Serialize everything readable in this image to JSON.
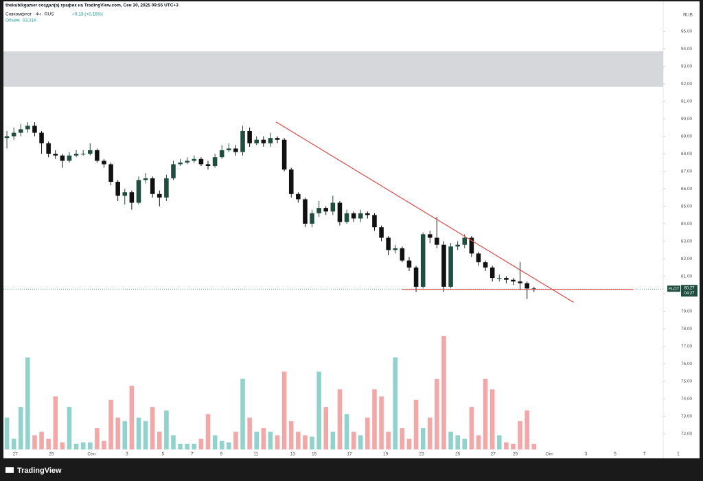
{
  "header": {
    "author_line": "thekubikgamer создал(а) график на TradingView.com, Сен 30, 2025 09:55 UTC+3",
    "symbol_line": "Совкомфлот · 4ч · RUS",
    "change": "+0,13 (+0,16%)",
    "volume_label": "Объём",
    "volume_value": "93,31K",
    "currency": "RUB",
    "brand": "TradingView"
  },
  "chart_data": {
    "type": "candlestick",
    "up_color": "#1f4d40",
    "down_color": "#111111",
    "volume_up_color": "#8fd3cc",
    "volume_down_color": "#f4a7a7",
    "grid": false,
    "xlim": [
      -0.5,
      97.5
    ],
    "xticks": [
      {
        "value": 1.2,
        "label": "27"
      },
      {
        "value": 6.4,
        "label": "29"
      },
      {
        "value": 12.2,
        "label": "Сен"
      },
      {
        "value": 17.3,
        "label": "3"
      },
      {
        "value": 22.5,
        "label": "5"
      },
      {
        "value": 26.7,
        "label": "7"
      },
      {
        "value": 30.9,
        "label": "9"
      },
      {
        "value": 35.9,
        "label": "11"
      },
      {
        "value": 41.2,
        "label": "13"
      },
      {
        "value": 44.3,
        "label": "15"
      },
      {
        "value": 49.4,
        "label": "17"
      },
      {
        "value": 54.6,
        "label": "19"
      },
      {
        "value": 59.8,
        "label": "23"
      },
      {
        "value": 65,
        "label": "25"
      },
      {
        "value": 70.1,
        "label": "27"
      },
      {
        "value": 73.3,
        "label": "29"
      },
      {
        "value": 78.2,
        "label": "Окт"
      },
      {
        "value": 83.5,
        "label": "3"
      },
      {
        "value": 87.7,
        "label": "5"
      },
      {
        "value": 91.9,
        "label": "7"
      },
      {
        "value": 96.8,
        "label": "1"
      }
    ],
    "ylim": [
      71,
      96.2
    ],
    "yticks": [
      {
        "value": 72,
        "label": "72,00"
      },
      {
        "value": 73,
        "label": "73,00"
      },
      {
        "value": 74,
        "label": "74,00"
      },
      {
        "value": 75,
        "label": "75,00"
      },
      {
        "value": 76,
        "label": "76,00"
      },
      {
        "value": 77,
        "label": "77,00"
      },
      {
        "value": 78,
        "label": "78,00"
      },
      {
        "value": 79,
        "label": "79,00"
      },
      {
        "value": 80,
        "label": "80,00"
      },
      {
        "value": 81,
        "label": "81,00"
      },
      {
        "value": 82,
        "label": "82,00"
      },
      {
        "value": 83,
        "label": "83,00"
      },
      {
        "value": 84,
        "label": "84,00"
      },
      {
        "value": 85,
        "label": "85,00"
      },
      {
        "value": 86,
        "label": "86,00"
      },
      {
        "value": 87,
        "label": "87,00"
      },
      {
        "value": 88,
        "label": "88,00"
      },
      {
        "value": 89,
        "label": "89,00"
      },
      {
        "value": 90,
        "label": "90,00"
      },
      {
        "value": 91,
        "label": "91,00"
      },
      {
        "value": 92,
        "label": "92,00"
      },
      {
        "value": 93,
        "label": "93,00"
      },
      {
        "value": 94,
        "label": "94,00"
      },
      {
        "value": 95,
        "label": "95,00"
      }
    ],
    "candles": {
      "open": [
        88.9,
        89.0,
        89.2,
        89.4,
        89.6,
        89.2,
        88.6,
        88.0,
        87.9,
        87.6,
        87.9,
        88.0,
        88.0,
        88.2,
        87.6,
        87.4,
        86.4,
        85.6,
        85.8,
        85.2,
        86.5,
        86.6,
        85.7,
        85.5,
        86.6,
        87.4,
        87.5,
        87.6,
        87.7,
        87.4,
        87.3,
        87.8,
        88.2,
        88.3,
        88.1,
        89.3,
        88.6,
        88.8,
        88.6,
        88.9,
        88.8,
        87.1,
        85.7,
        85.4,
        84.0,
        84.6,
        84.9,
        84.7,
        85.2,
        84.1,
        84.6,
        84.3,
        84.6,
        84.5,
        83.8,
        83.2,
        82.5,
        82.6,
        81.9,
        81.5,
        80.4,
        83.4,
        83.2,
        82.8,
        80.4,
        82.7,
        82.8,
        83.2,
        82.3,
        81.8,
        81.5,
        80.9,
        80.9,
        80.8,
        80.7,
        80.6,
        80.3
      ],
      "high": [
        89.3,
        89.5,
        89.7,
        89.8,
        89.8,
        89.3,
        88.7,
        88.2,
        88.0,
        88.1,
        88.2,
        88.2,
        88.6,
        88.3,
        87.7,
        87.5,
        86.5,
        86.0,
        85.9,
        86.7,
        86.9,
        86.7,
        85.9,
        86.8,
        87.6,
        87.7,
        87.8,
        87.9,
        87.8,
        87.6,
        88.0,
        88.5,
        88.6,
        88.5,
        89.6,
        89.5,
        89.0,
        89.0,
        89.2,
        89.0,
        88.9,
        87.2,
        85.8,
        85.5,
        84.8,
        85.3,
        85.0,
        85.6,
        85.3,
        84.8,
        84.7,
        84.8,
        84.7,
        84.6,
        83.9,
        83.3,
        82.8,
        82.7,
        82.1,
        81.6,
        83.5,
        83.6,
        84.4,
        83.0,
        82.9,
        83.0,
        83.4,
        83.3,
        82.4,
        81.9,
        81.6,
        81.1,
        81.0,
        80.9,
        81.8,
        80.7,
        80.4
      ],
      "low": [
        88.3,
        88.8,
        89.0,
        89.2,
        89.0,
        88.0,
        87.8,
        87.7,
        87.2,
        87.5,
        87.8,
        87.9,
        87.9,
        87.5,
        87.2,
        86.2,
        85.3,
        85.1,
        84.8,
        85.1,
        86.3,
        85.5,
        85.0,
        85.3,
        86.5,
        87.3,
        87.4,
        87.5,
        87.3,
        87.1,
        87.2,
        87.7,
        88.1,
        87.9,
        87.9,
        88.4,
        88.5,
        88.4,
        88.4,
        88.6,
        87.0,
        85.5,
        85.2,
        83.8,
        83.8,
        84.4,
        84.5,
        84.5,
        83.9,
        84.0,
        84.1,
        84.1,
        84.3,
        83.6,
        83.0,
        82.2,
        82.3,
        81.8,
        81.3,
        80.1,
        80.3,
        82.9,
        82.6,
        80.1,
        80.3,
        82.5,
        82.6,
        82.1,
        81.6,
        81.3,
        80.7,
        80.7,
        80.6,
        80.5,
        80.2,
        79.7,
        80.1
      ],
      "close": [
        89.0,
        89.2,
        89.4,
        89.6,
        89.2,
        88.6,
        88.0,
        87.9,
        87.6,
        87.9,
        88.0,
        88.0,
        88.2,
        87.6,
        87.4,
        86.4,
        85.6,
        85.8,
        85.2,
        86.5,
        86.6,
        85.7,
        85.5,
        86.6,
        87.4,
        87.5,
        87.6,
        87.7,
        87.4,
        87.3,
        87.8,
        88.2,
        88.3,
        88.1,
        89.3,
        88.6,
        88.8,
        88.6,
        88.9,
        88.8,
        87.1,
        85.7,
        85.4,
        84.0,
        84.6,
        84.9,
        84.7,
        85.2,
        84.1,
        84.6,
        84.3,
        84.6,
        84.5,
        83.8,
        83.2,
        82.5,
        82.6,
        81.9,
        81.5,
        80.4,
        83.4,
        83.2,
        82.8,
        80.4,
        82.7,
        82.8,
        83.2,
        82.3,
        81.8,
        81.5,
        80.9,
        80.9,
        80.8,
        80.7,
        80.6,
        80.3,
        80.27
      ],
      "volume": [
        540,
        180,
        720,
        1560,
        240,
        300,
        180,
        900,
        120,
        720,
        96,
        120,
        120,
        360,
        144,
        840,
        540,
        480,
        1080,
        540,
        480,
        720,
        300,
        660,
        240,
        96,
        96,
        96,
        180,
        600,
        240,
        144,
        120,
        300,
        1200,
        540,
        300,
        360,
        300,
        240,
        1320,
        480,
        300,
        240,
        216,
        1320,
        720,
        300,
        1020,
        600,
        300,
        240,
        540,
        1020,
        900,
        300,
        1560,
        360,
        180,
        840,
        360,
        540,
        1200,
        1920,
        300,
        240,
        180,
        720,
        240,
        1200,
        1020,
        240,
        120,
        96,
        480,
        660,
        93.31
      ]
    },
    "resistance_zone": [
      91.82,
      93.86
    ],
    "trend_line": {
      "x": [
        38.8,
        81.7
      ],
      "y": [
        89.82,
        79.51
      ]
    },
    "support_line": {
      "x": [
        57,
        90.3
      ],
      "y": 80.25
    },
    "last_price": {
      "symbol": "FLOT",
      "value": 80.27,
      "label": "80,27",
      "countdown": "04:27"
    }
  }
}
